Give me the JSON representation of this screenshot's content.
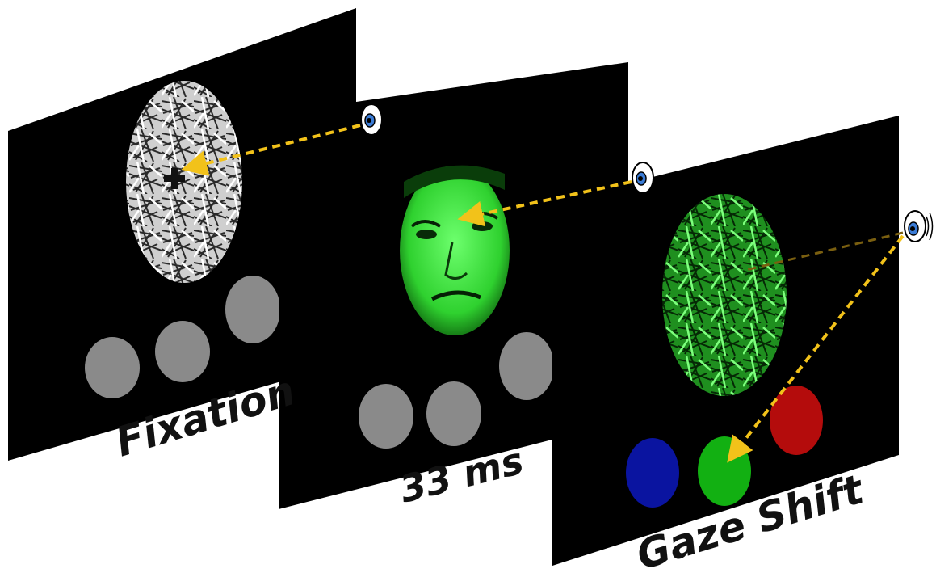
{
  "panels": [
    {
      "id": "fixation",
      "label": "Fixation",
      "stimulus": "grayscale-scrambled-texture-with-fixation-cross",
      "response_circles": [
        "#8a8a8a",
        "#8a8a8a",
        "#8a8a8a"
      ]
    },
    {
      "id": "face",
      "label": "33 ms",
      "stimulus": "green-tinted-face",
      "response_circles": [
        "#8a8a8a",
        "#8a8a8a",
        "#8a8a8a"
      ]
    },
    {
      "id": "gaze",
      "label": "Gaze Shift",
      "stimulus": "green-scrambled-texture",
      "response_circles": [
        "#0a14a0",
        "#12b012",
        "#b40c0c"
      ]
    }
  ],
  "colors": {
    "panel": "#000000",
    "gaze_arrow": "#f2c21a",
    "green_tint": "#2fd12f",
    "gray_circle": "#8a8a8a"
  },
  "icons": [
    "eye-icon",
    "eye-icon",
    "eye-icon"
  ]
}
